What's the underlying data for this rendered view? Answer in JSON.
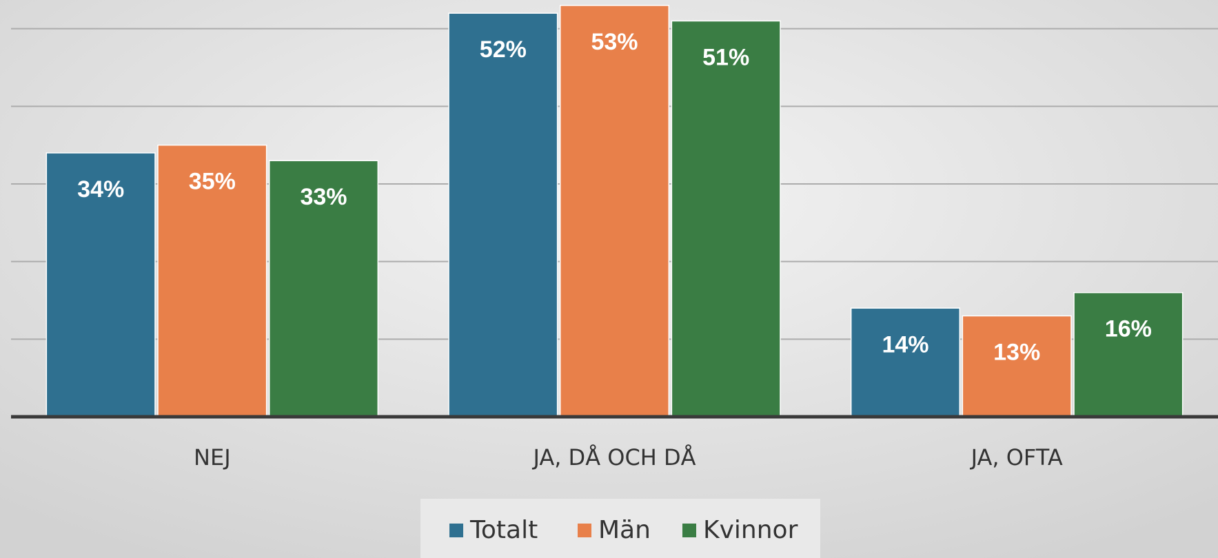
{
  "chart_data": {
    "type": "bar",
    "categories": [
      "NEJ",
      "JA, DÅ OCH DÅ",
      "JA, OFTA"
    ],
    "series": [
      {
        "name": "Totalt",
        "color": "#2f7090",
        "values": [
          34,
          52,
          14
        ],
        "value_labels": [
          "34%",
          "52%",
          "14%"
        ]
      },
      {
        "name": "Män",
        "color": "#e8804a",
        "values": [
          35,
          53,
          13
        ],
        "value_labels": [
          "35%",
          "53%",
          "13%"
        ]
      },
      {
        "name": "Kvinnor",
        "color": "#3a7d44",
        "values": [
          33,
          51,
          16
        ],
        "value_labels": [
          "33%",
          "51%",
          "16%"
        ]
      }
    ],
    "ylim": [
      0,
      53.7
    ],
    "yticks": [
      0,
      10,
      20,
      30,
      40,
      50
    ],
    "grid": true,
    "legend": "bottom"
  }
}
